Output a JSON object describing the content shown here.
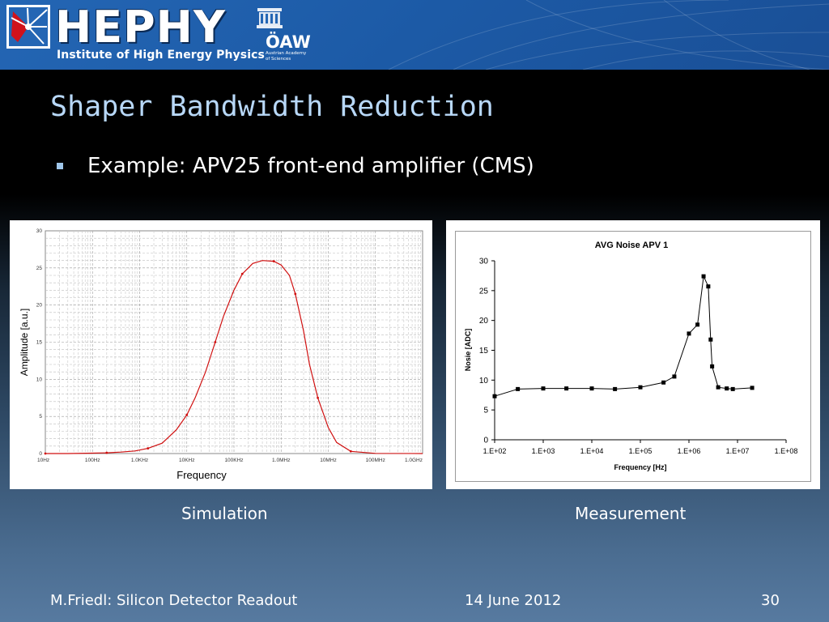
{
  "header": {
    "brand": "HEPHY",
    "brand_subtitle": "Institute of High Energy Physics",
    "partner": "ÖAW",
    "partner_sub1": "Austrian Academy",
    "partner_sub2": "of Sciences"
  },
  "title": "Shaper Bandwidth Reduction",
  "bullet": "Example: APV25 front-end amplifier (CMS)",
  "captions": {
    "simulation": "Simulation",
    "measurement": "Measurement"
  },
  "footer": {
    "author": "M.Friedl: Silicon Detector Readout",
    "date": "14 June 2012",
    "page": "30"
  },
  "colors": {
    "sim_curve": "#d01010",
    "meas_curve": "#000000",
    "title": "#b8d8f8",
    "header_bg": "#1f5ea8"
  },
  "chart_data": [
    {
      "type": "line",
      "title": "",
      "xlabel": "Frequency",
      "ylabel": "Amplitude [a.u.]",
      "x_scale": "log",
      "xlim": [
        10,
        1000000000
      ],
      "ylim": [
        0,
        30
      ],
      "grid": true,
      "x_ticks": [
        10,
        100,
        1000,
        10000,
        100000,
        1000000,
        10000000,
        100000000,
        1000000000
      ],
      "x_tick_labels": [
        "10Hz",
        "100Hz",
        "1.0KHz",
        "10KHz",
        "100KHz",
        "1.0MHz",
        "10MHz",
        "100MHz",
        "1.0GHz"
      ],
      "y_ticks": [
        0,
        5,
        10,
        15,
        20,
        25,
        30
      ],
      "y_tick_labels": [
        "0",
        "5",
        "10",
        "15",
        "20",
        "25",
        "30"
      ],
      "series": [
        {
          "x": [
            10,
            30,
            100,
            200,
            400,
            800,
            1500,
            3000,
            6000,
            10000,
            15000,
            25000,
            40000,
            60000,
            100000,
            150000,
            250000,
            400000,
            700000,
            1000000,
            1500000,
            2000000,
            3000000,
            4000000,
            6000000,
            10000000,
            15000000,
            30000000,
            100000000,
            1000000000
          ],
          "y": [
            0,
            0,
            0.05,
            0.1,
            0.2,
            0.35,
            0.7,
            1.4,
            3.2,
            5.2,
            7.5,
            11,
            15,
            18.5,
            22,
            24.2,
            25.6,
            26,
            25.9,
            25.4,
            24,
            21.5,
            16.5,
            12,
            7.5,
            3.5,
            1.5,
            0.3,
            0.02,
            0
          ]
        }
      ]
    },
    {
      "type": "line",
      "title": "AVG Noise APV 1",
      "xlabel": "Frequency [Hz]",
      "ylabel": "Nosie [ADC]",
      "x_scale": "log",
      "xlim": [
        100,
        100000000
      ],
      "ylim": [
        0,
        30
      ],
      "grid": false,
      "x_ticks": [
        100,
        1000,
        10000,
        100000,
        1000000,
        10000000,
        100000000
      ],
      "x_tick_labels": [
        "1.E+02",
        "1.E+03",
        "1.E+04",
        "1.E+05",
        "1.E+06",
        "1.E+07",
        "1.E+08"
      ],
      "y_ticks": [
        0,
        5,
        10,
        15,
        20,
        25,
        30
      ],
      "y_tick_labels": [
        "0",
        "5",
        "10",
        "15",
        "20",
        "25",
        "30"
      ],
      "series": [
        {
          "x": [
            100,
            300,
            1000,
            3000,
            10000,
            30000,
            100000,
            300000,
            500000,
            1000000,
            1500000,
            2000000,
            2500000,
            2800000,
            3000000,
            4000000,
            6000000,
            8000000,
            20000000
          ],
          "y": [
            7.3,
            8.5,
            8.6,
            8.6,
            8.6,
            8.5,
            8.8,
            9.6,
            10.6,
            17.8,
            19.3,
            27.4,
            25.7,
            16.8,
            12.3,
            8.8,
            8.6,
            8.5,
            8.7
          ]
        }
      ]
    }
  ]
}
